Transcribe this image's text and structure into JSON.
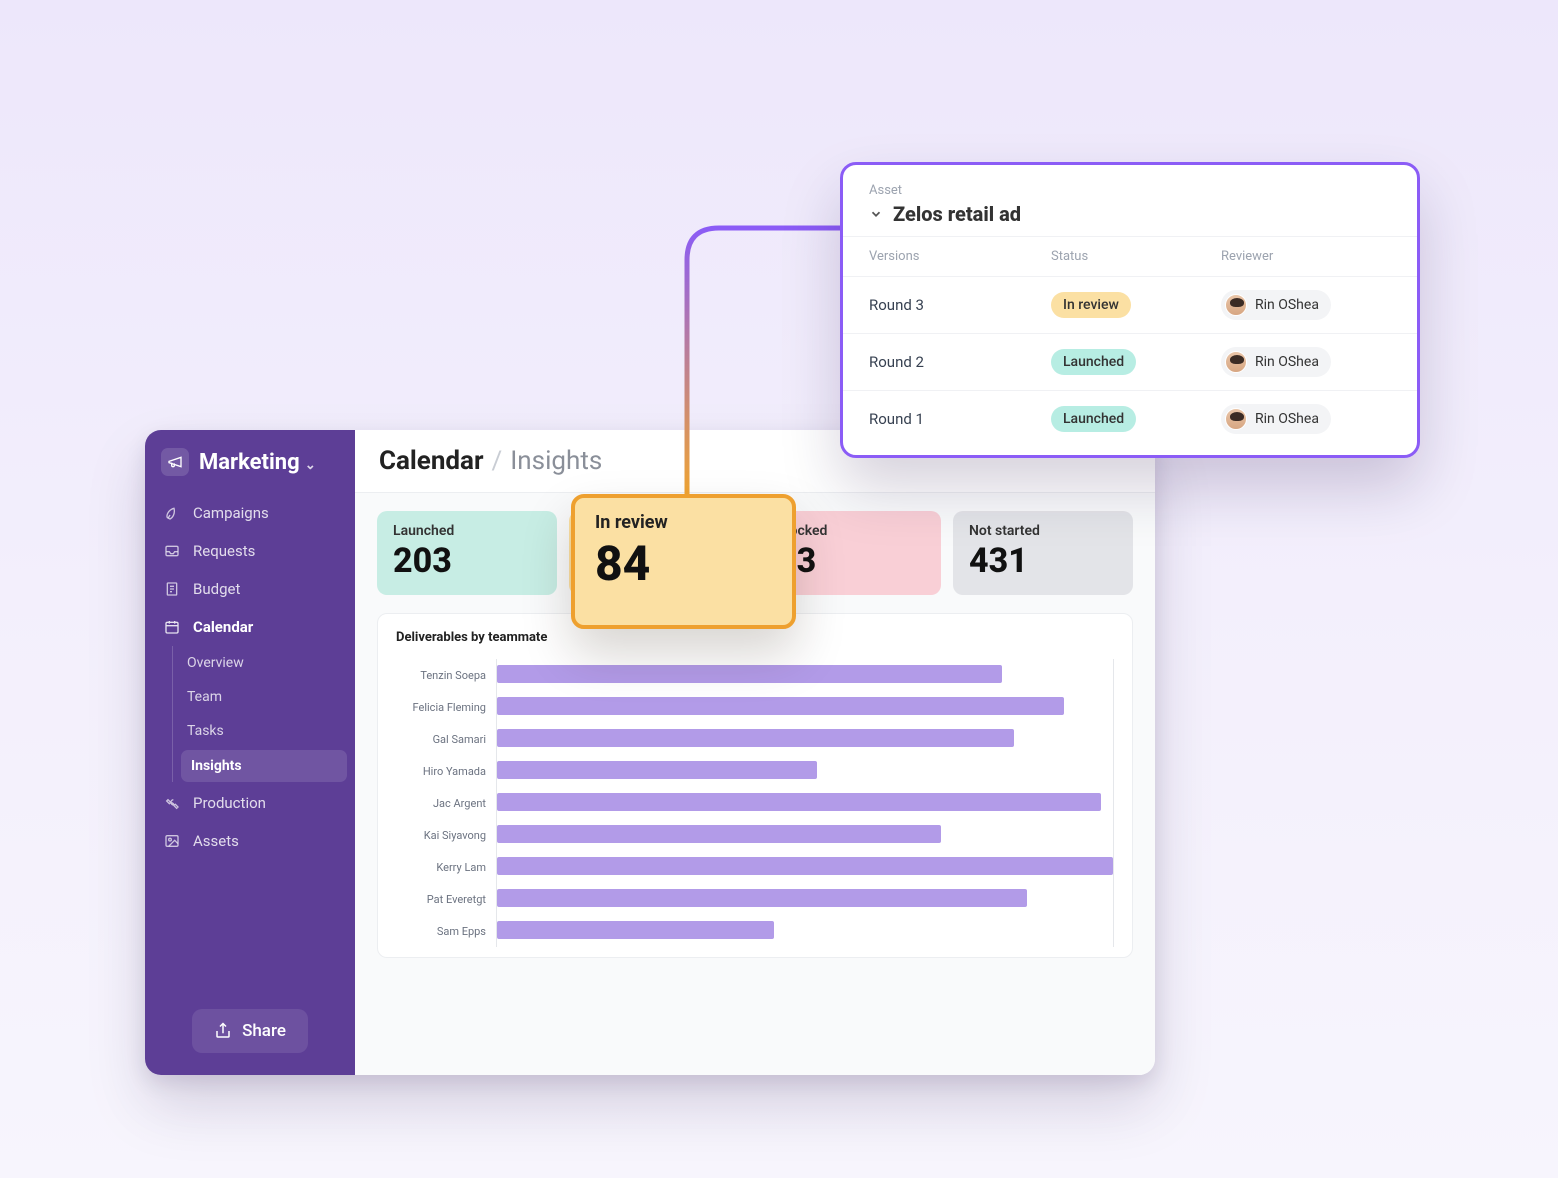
{
  "sidebar": {
    "title": "Marketing",
    "items": [
      {
        "icon": "rocket-icon",
        "label": "Campaigns"
      },
      {
        "icon": "inbox-icon",
        "label": "Requests"
      },
      {
        "icon": "receipt-icon",
        "label": "Budget"
      },
      {
        "icon": "calendar-icon",
        "label": "Calendar",
        "active": true,
        "subitems": [
          {
            "label": "Overview"
          },
          {
            "label": "Team"
          },
          {
            "label": "Tasks"
          },
          {
            "label": "Insights",
            "active": true
          }
        ]
      },
      {
        "icon": "wrench-icon",
        "label": "Production"
      },
      {
        "icon": "image-icon",
        "label": "Assets"
      }
    ],
    "share_label": "Share"
  },
  "header": {
    "breadcrumb_main": "Calendar",
    "breadcrumb_sub": "Insights"
  },
  "stats": [
    {
      "label": "Launched",
      "value": "203",
      "bg": "#c7ede4"
    },
    {
      "label": "In review",
      "value": "84",
      "bg": "#fbe0a3"
    },
    {
      "label": "Blocked",
      "value": "13",
      "bg": "#f9cfd6"
    },
    {
      "label": "Not started",
      "value": "431",
      "bg": "#e3e4e8"
    }
  ],
  "highlight": {
    "label": "In review",
    "value": "84",
    "border": "#eea02f",
    "bg": "#fbe0a3"
  },
  "chart": {
    "title": "Deliverables by teammate",
    "bar_color": "#b29be8",
    "max": 100,
    "rows": [
      {
        "name": "Tenzin Soepa",
        "value": 82
      },
      {
        "name": "Felicia Fleming",
        "value": 92
      },
      {
        "name": "Gal Samari",
        "value": 84
      },
      {
        "name": "Hiro Yamada",
        "value": 52
      },
      {
        "name": "Jac Argent",
        "value": 98
      },
      {
        "name": "Kai Siyavong",
        "value": 72
      },
      {
        "name": "Kerry Lam",
        "value": 100
      },
      {
        "name": "Pat Everetgt",
        "value": 86
      },
      {
        "name": "Sam Epps",
        "value": 45
      }
    ]
  },
  "popover": {
    "eyebrow": "Asset",
    "title": "Zelos retail ad",
    "columns": {
      "versions": "Versions",
      "status": "Status",
      "reviewer": "Reviewer"
    },
    "status_colors": {
      "In review": "#fbe0a3",
      "Launched": "#b7ede3"
    },
    "rows": [
      {
        "version": "Round 3",
        "status": "In review",
        "reviewer": "Rin OShea"
      },
      {
        "version": "Round 2",
        "status": "Launched",
        "reviewer": "Rin OShea"
      },
      {
        "version": "Round 1",
        "status": "Launched",
        "reviewer": "Rin OShea"
      }
    ]
  },
  "colors": {
    "sidebar_bg": "#5d3e96",
    "accent_purple": "#8b5cf6"
  }
}
